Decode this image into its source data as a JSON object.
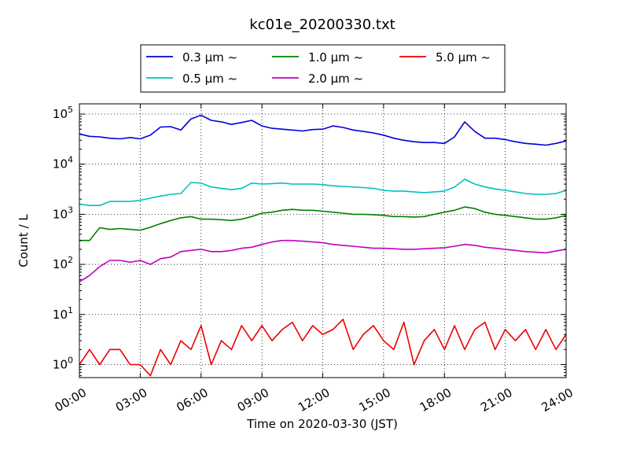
{
  "chart_data": {
    "type": "line",
    "title": "kc01e_20200330.txt",
    "xlabel": "Time on 2020-03-30 (JST)",
    "ylabel": "Count / L",
    "yscale": "log",
    "ylim": [
      0.55,
      160000
    ],
    "grid": true,
    "legend_placement": "top-center",
    "x_ticks": [
      "00:00",
      "03:00",
      "06:00",
      "09:00",
      "12:00",
      "15:00",
      "18:00",
      "21:00",
      "24:00"
    ],
    "y_ticks": [
      "10^0",
      "10^1",
      "10^2",
      "10^3",
      "10^4",
      "10^5"
    ],
    "x": [
      "00:00",
      "00:30",
      "01:00",
      "01:30",
      "02:00",
      "02:30",
      "03:00",
      "03:30",
      "04:00",
      "04:30",
      "05:00",
      "05:30",
      "06:00",
      "06:30",
      "07:00",
      "07:30",
      "08:00",
      "08:30",
      "09:00",
      "09:30",
      "10:00",
      "10:30",
      "11:00",
      "11:30",
      "12:00",
      "12:30",
      "13:00",
      "13:30",
      "14:00",
      "14:30",
      "15:00",
      "15:30",
      "16:00",
      "16:30",
      "17:00",
      "17:30",
      "18:00",
      "18:30",
      "19:00",
      "19:30",
      "20:00",
      "20:30",
      "21:00",
      "21:30",
      "22:00",
      "22:30",
      "23:00",
      "23:30",
      "24:00"
    ],
    "series": [
      {
        "name": "0.3 μm ~",
        "color": "#0000dd",
        "values": [
          40000,
          36000,
          35000,
          33000,
          32000,
          34000,
          32000,
          38000,
          55000,
          56000,
          48000,
          80000,
          95000,
          75000,
          70000,
          62000,
          68000,
          75000,
          58000,
          52000,
          50000,
          48000,
          46000,
          49000,
          50000,
          58000,
          54000,
          48000,
          45000,
          42000,
          38000,
          33000,
          30000,
          28000,
          27000,
          27000,
          26000,
          35000,
          70000,
          45000,
          33000,
          33000,
          31000,
          28000,
          26000,
          25000,
          24000,
          26000,
          29000
        ]
      },
      {
        "name": "0.5 μm ~",
        "color": "#00c0c0",
        "values": [
          1600,
          1500,
          1500,
          1800,
          1800,
          1800,
          1900,
          2100,
          2300,
          2500,
          2600,
          4300,
          4200,
          3500,
          3300,
          3100,
          3300,
          4200,
          4000,
          4100,
          4200,
          4000,
          4000,
          4000,
          3900,
          3700,
          3600,
          3500,
          3400,
          3300,
          3000,
          2900,
          2900,
          2800,
          2700,
          2800,
          2900,
          3500,
          5000,
          4000,
          3500,
          3200,
          3000,
          2800,
          2600,
          2500,
          2500,
          2600,
          3000
        ]
      },
      {
        "name": "1.0 μm ~",
        "color": "#008000",
        "values": [
          300,
          300,
          540,
          500,
          520,
          500,
          480,
          550,
          650,
          750,
          850,
          900,
          800,
          800,
          780,
          750,
          800,
          900,
          1050,
          1100,
          1200,
          1250,
          1200,
          1200,
          1150,
          1100,
          1050,
          1000,
          1000,
          980,
          950,
          900,
          900,
          880,
          900,
          1000,
          1100,
          1200,
          1400,
          1300,
          1100,
          1000,
          950,
          900,
          850,
          800,
          800,
          850,
          950
        ]
      },
      {
        "name": "2.0 μm ~",
        "color": "#c000c0",
        "values": [
          45,
          60,
          90,
          120,
          120,
          110,
          120,
          100,
          130,
          140,
          180,
          190,
          200,
          180,
          180,
          190,
          210,
          220,
          250,
          280,
          300,
          300,
          290,
          280,
          270,
          250,
          240,
          230,
          220,
          210,
          210,
          205,
          200,
          200,
          205,
          210,
          215,
          230,
          250,
          240,
          220,
          210,
          200,
          190,
          180,
          175,
          170,
          185,
          200
        ]
      },
      {
        "name": "5.0 μm ~",
        "color": "#ee0000",
        "values": [
          1,
          2,
          1,
          2,
          2,
          1,
          1,
          0.6,
          2,
          1,
          3,
          2,
          6,
          1,
          3,
          2,
          6,
          3,
          6,
          3,
          5,
          7,
          3,
          6,
          4,
          5,
          8,
          2,
          4,
          6,
          3,
          2,
          7,
          1,
          3,
          5,
          2,
          6,
          2,
          5,
          7,
          2,
          5,
          3,
          5,
          2,
          5,
          2,
          4
        ]
      }
    ]
  }
}
